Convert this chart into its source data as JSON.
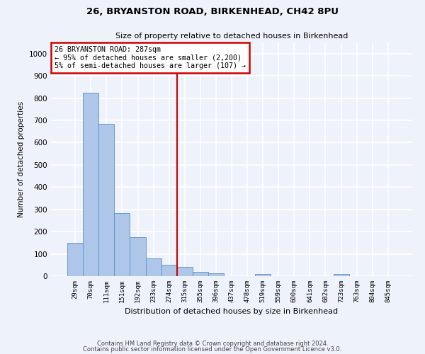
{
  "title1": "26, BRYANSTON ROAD, BIRKENHEAD, CH42 8PU",
  "title2": "Size of property relative to detached houses in Birkenhead",
  "xlabel": "Distribution of detached houses by size in Birkenhead",
  "ylabel": "Number of detached properties",
  "categories": [
    "29sqm",
    "70sqm",
    "111sqm",
    "151sqm",
    "192sqm",
    "233sqm",
    "274sqm",
    "315sqm",
    "355sqm",
    "396sqm",
    "437sqm",
    "478sqm",
    "519sqm",
    "559sqm",
    "600sqm",
    "641sqm",
    "682sqm",
    "723sqm",
    "763sqm",
    "804sqm",
    "845sqm"
  ],
  "values": [
    150,
    825,
    685,
    283,
    175,
    78,
    52,
    42,
    20,
    13,
    0,
    0,
    10,
    0,
    0,
    0,
    0,
    10,
    0,
    0,
    0
  ],
  "bar_color": "#aec6e8",
  "bar_edge_color": "#5b8fc9",
  "vline_x": 6.5,
  "vline_color": "#cc0000",
  "annotation_title": "26 BRYANSTON ROAD: 287sqm",
  "annotation_line1": "← 95% of detached houses are smaller (2,200)",
  "annotation_line2": "5% of semi-detached houses are larger (107) →",
  "annotation_box_color": "#cc0000",
  "ylim": [
    0,
    1050
  ],
  "yticks": [
    0,
    100,
    200,
    300,
    400,
    500,
    600,
    700,
    800,
    900,
    1000
  ],
  "background_color": "#eef2fb",
  "grid_color": "#ffffff",
  "footer1": "Contains HM Land Registry data © Crown copyright and database right 2024.",
  "footer2": "Contains public sector information licensed under the Open Government Licence v3.0."
}
